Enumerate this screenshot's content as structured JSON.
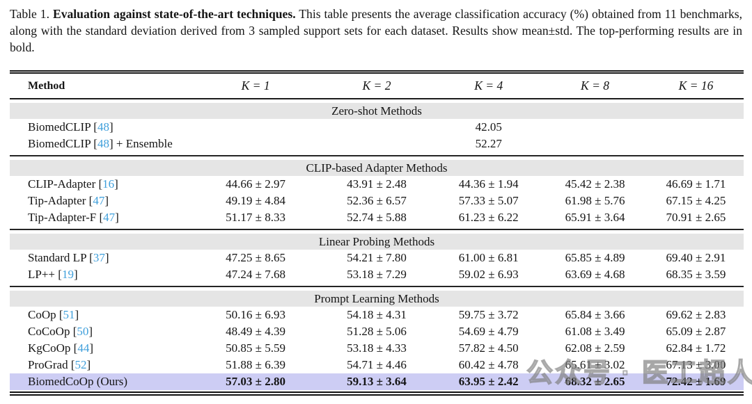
{
  "caption": {
    "label": "Table 1.",
    "bold_title": "Evaluation against state-of-the-art techniques.",
    "text": "This table presents the average classification accuracy (%) obtained from 11 benchmarks, along with the standard deviation derived from 3 sampled support sets for each dataset. Results show mean±std. The top-performing results are in bold."
  },
  "table": {
    "columns": [
      "Method",
      "K = 1",
      "K = 2",
      "K = 4",
      "K = 8",
      "K = 16"
    ],
    "sections": [
      {
        "title": "Zero-shot Methods",
        "rows": [
          {
            "name": "BiomedCLIP",
            "cite": "48",
            "after": "",
            "values": [
              "",
              "",
              "42.05",
              "",
              ""
            ]
          },
          {
            "name": "BiomedCLIP",
            "cite": "48",
            "after": " + Ensemble",
            "values": [
              "",
              "",
              "52.27",
              "",
              ""
            ]
          }
        ]
      },
      {
        "title": "CLIP-based Adapter Methods",
        "rows": [
          {
            "name": "CLIP-Adapter",
            "cite": "16",
            "after": "",
            "values": [
              "44.66 ± 2.97",
              "43.91 ± 2.48",
              "44.36 ± 1.94",
              "45.42 ± 2.38",
              "46.69 ± 1.71"
            ]
          },
          {
            "name": "Tip-Adapter",
            "cite": "47",
            "after": "",
            "values": [
              "49.19 ± 4.84",
              "52.36 ± 6.57",
              "57.33 ± 5.07",
              "61.98 ± 5.76",
              "67.15 ± 4.25"
            ]
          },
          {
            "name": "Tip-Adapter-F",
            "cite": "47",
            "after": "",
            "values": [
              "51.17 ± 8.33",
              "52.74 ± 5.88",
              "61.23 ± 6.22",
              "65.91 ± 3.64",
              "70.91 ± 2.65"
            ]
          }
        ]
      },
      {
        "title": "Linear Probing Methods",
        "rows": [
          {
            "name": "Standard LP",
            "cite": "37",
            "after": "",
            "values": [
              "47.25 ± 8.65",
              "54.21 ± 7.80",
              "61.00 ± 6.81",
              "65.85 ± 4.89",
              "69.40 ± 2.91"
            ]
          },
          {
            "name": "LP++",
            "cite": "19",
            "after": "",
            "values": [
              "47.24 ± 7.68",
              "53.18 ± 7.29",
              "59.02 ± 6.93",
              "63.69 ± 4.68",
              "68.35 ± 3.59"
            ]
          }
        ]
      },
      {
        "title": "Prompt Learning Methods",
        "rows": [
          {
            "name": "CoOp",
            "cite": "51",
            "after": "",
            "values": [
              "50.16 ± 6.93",
              "54.18 ± 4.31",
              "59.75 ± 3.72",
              "65.84 ± 3.66",
              "69.62 ± 2.83"
            ]
          },
          {
            "name": "CoCoOp",
            "cite": "50",
            "after": "",
            "values": [
              "48.49 ± 4.39",
              "51.28 ± 5.06",
              "54.69 ± 4.79",
              "61.08 ± 3.49",
              "65.09 ± 2.87"
            ]
          },
          {
            "name": "KgCoOp",
            "cite": "44",
            "after": "",
            "values": [
              "50.85 ± 5.59",
              "53.18 ± 4.33",
              "57.82 ± 4.50",
              "62.08 ± 2.59",
              "62.84 ± 1.72"
            ]
          },
          {
            "name": "ProGrad",
            "cite": "52",
            "after": "",
            "values": [
              "51.88 ± 6.39",
              "54.71 ± 4.46",
              "60.42 ± 4.78",
              "65.61 ± 3.02",
              "67.13 ± 3.00"
            ]
          },
          {
            "name": "BiomedCoOp (Ours)",
            "cite": "",
            "after": "",
            "highlight": true,
            "bold_values": true,
            "values": [
              "57.03 ± 2.80",
              "59.13 ± 3.64",
              "63.95 ± 2.42",
              "68.32 ± 2.65",
              "72.42 ± 1.69"
            ]
          }
        ]
      }
    ],
    "highlight_color": "#cdcdf4",
    "section_band_color": "#e5e5e5",
    "citation_color": "#3f9fdb"
  },
  "watermark": {
    "icon": "wechat-icon",
    "text": "公众号 · 医工超人"
  }
}
